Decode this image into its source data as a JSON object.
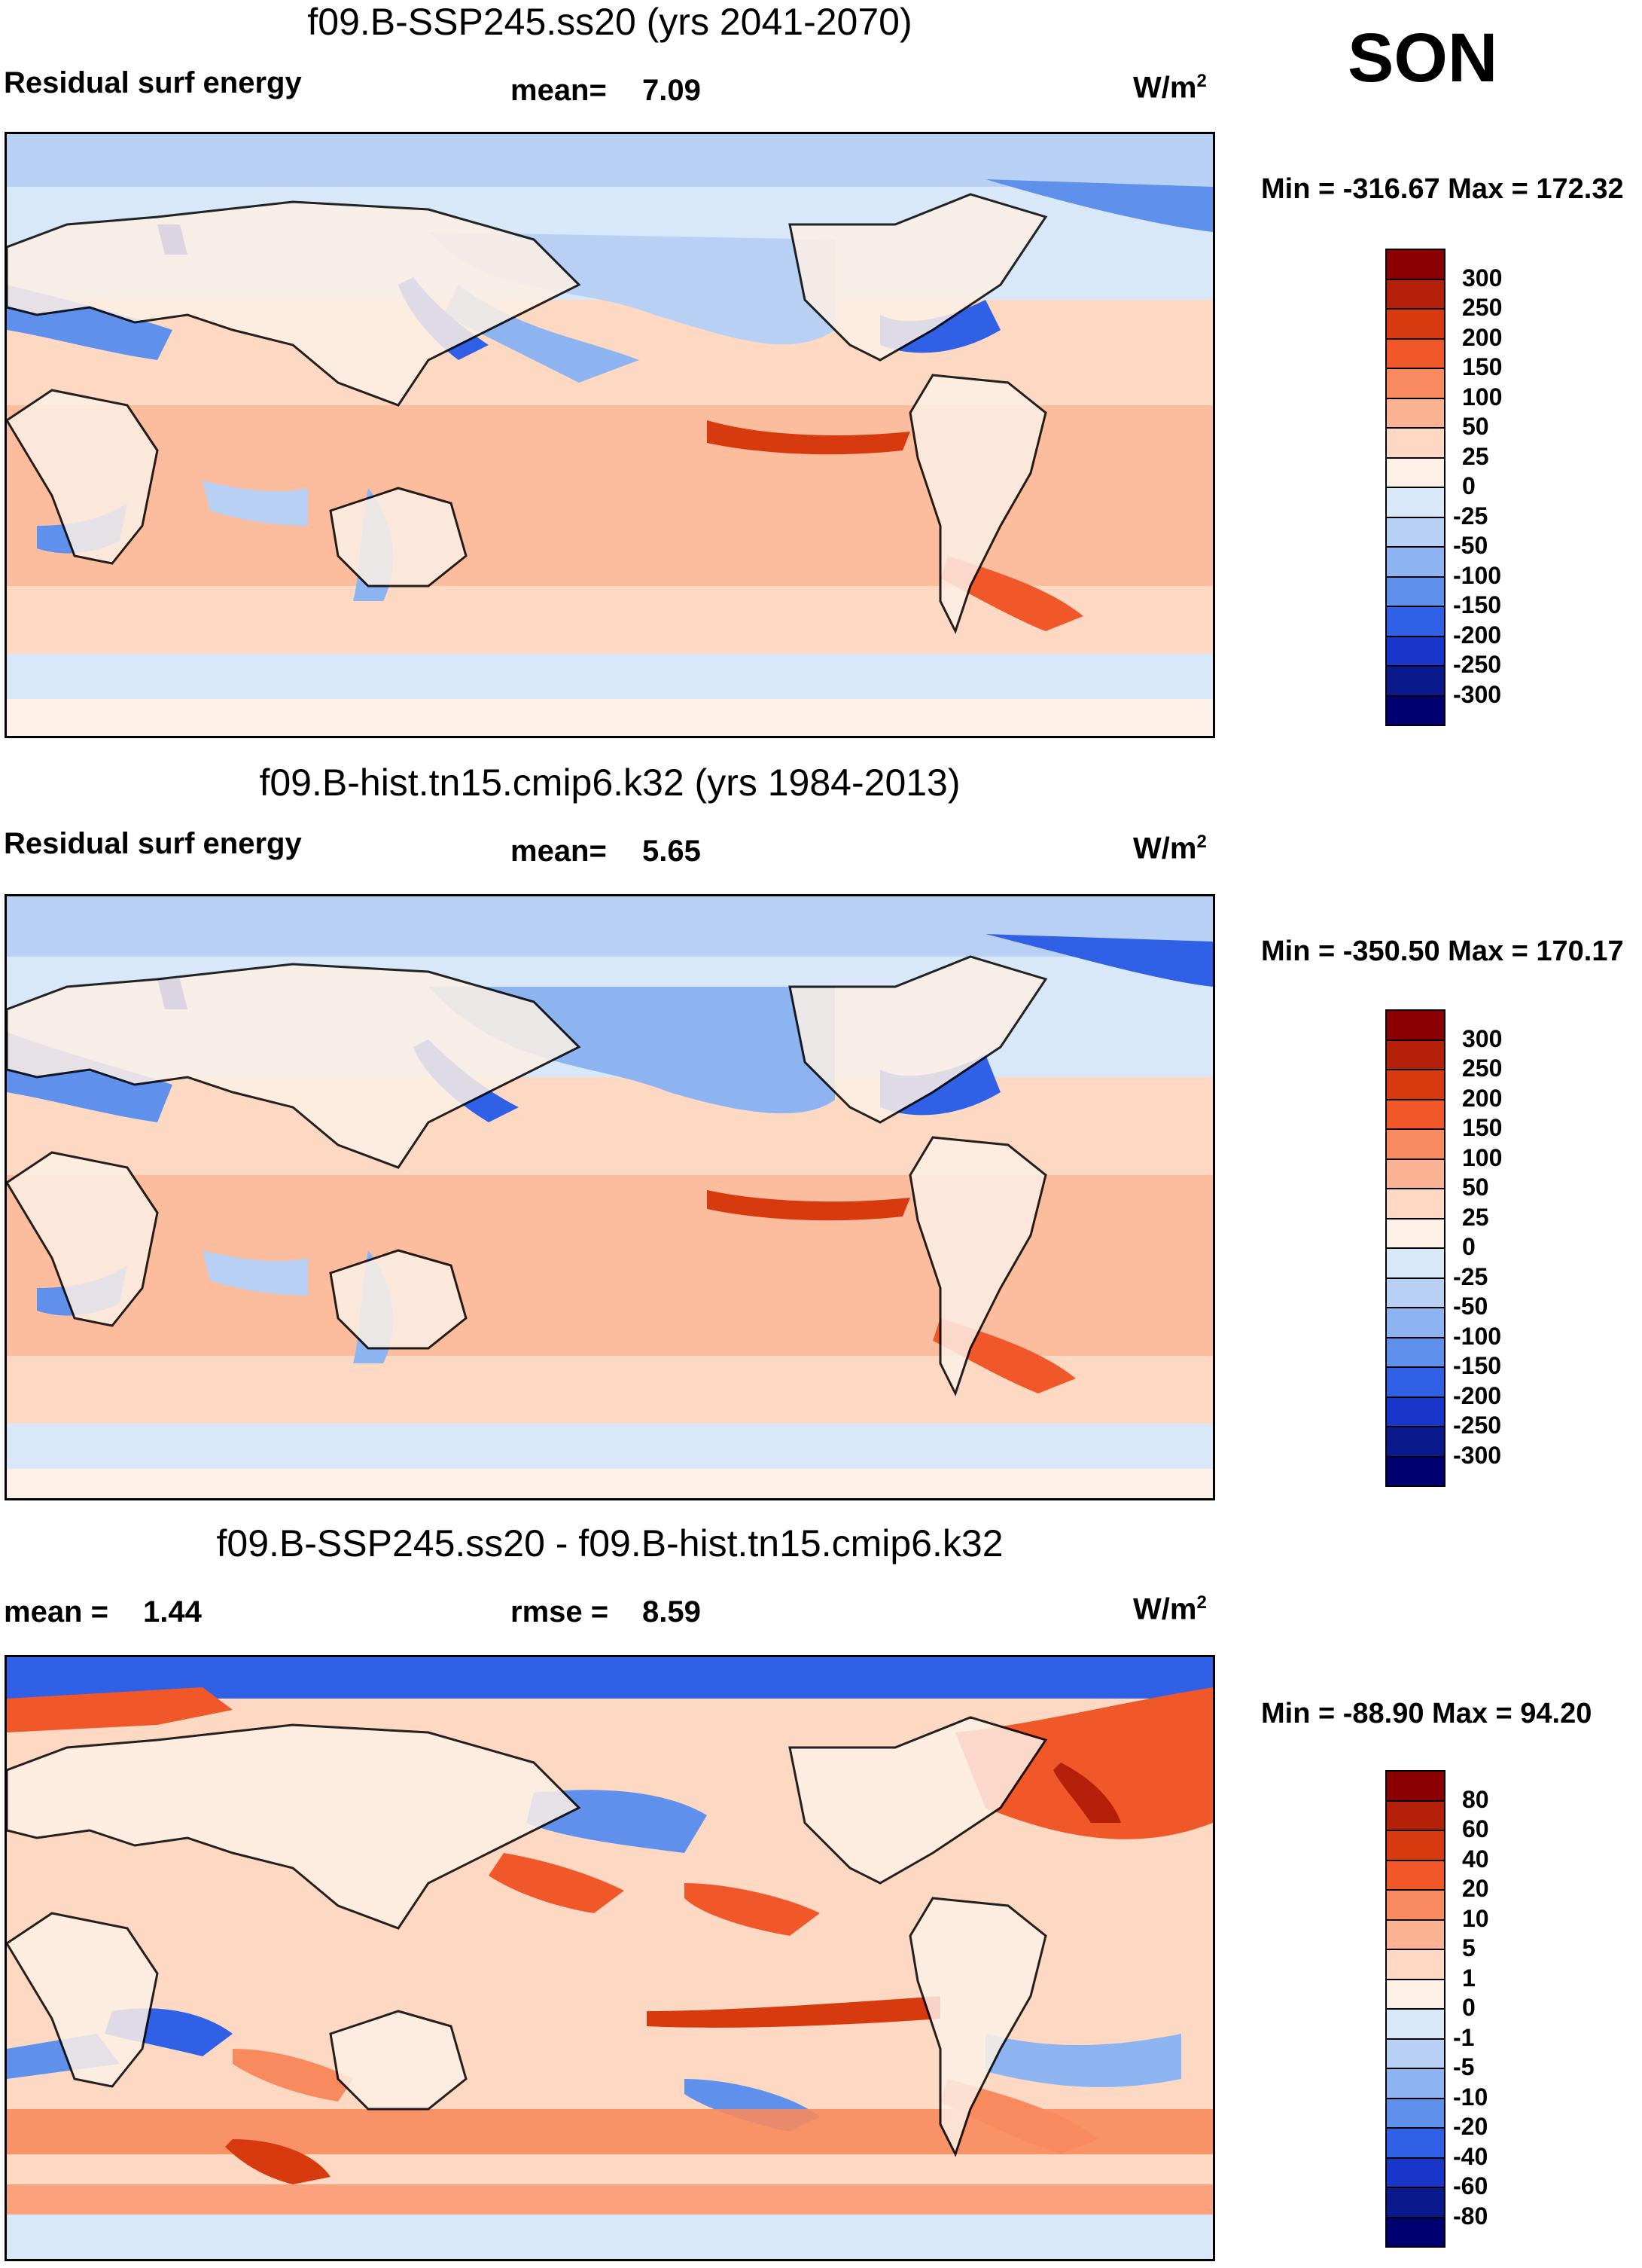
{
  "season": "SON",
  "panels": [
    {
      "title": "f09.B-SSP245.ss20 (yrs 2041-2070)",
      "left_label": "Residual surf energy",
      "stat1_label": "mean=",
      "stat1_value": "7.09",
      "stat2_label": "",
      "stat2_value": "",
      "units": "W/m",
      "units_sup": "2",
      "minmax": "Min = -316.67 Max = 172.32",
      "colorbar": {
        "ticks": [
          "300",
          "250",
          "200",
          "150",
          "100",
          "50",
          "25",
          "0",
          "-25",
          "-50",
          "-100",
          "-150",
          "-200",
          "-250",
          "-300"
        ],
        "colors": [
          "#8b0000",
          "#b5200a",
          "#d83a0f",
          "#f0582a",
          "#f98a5e",
          "#fbb393",
          "#fdd9c4",
          "#fdf0e6",
          "#d8e8f8",
          "#b7d0f4",
          "#8db4f0",
          "#5f90ec",
          "#3060e6",
          "#1836c8",
          "#0a1a8c",
          "#000070"
        ]
      }
    },
    {
      "title": "f09.B-hist.tn15.cmip6.k32 (yrs 1984-2013)",
      "left_label": "Residual surf energy",
      "stat1_label": "mean=",
      "stat1_value": "5.65",
      "stat2_label": "",
      "stat2_value": "",
      "units": "W/m",
      "units_sup": "2",
      "minmax": "Min = -350.50 Max = 170.17",
      "colorbar": {
        "ticks": [
          "300",
          "250",
          "200",
          "150",
          "100",
          "50",
          "25",
          "0",
          "-25",
          "-50",
          "-100",
          "-150",
          "-200",
          "-250",
          "-300"
        ],
        "colors": [
          "#8b0000",
          "#b5200a",
          "#d83a0f",
          "#f0582a",
          "#f98a5e",
          "#fbb393",
          "#fdd9c4",
          "#fdf0e6",
          "#d8e8f8",
          "#b7d0f4",
          "#8db4f0",
          "#5f90ec",
          "#3060e6",
          "#1836c8",
          "#0a1a8c",
          "#000070"
        ]
      }
    },
    {
      "title": "f09.B-SSP245.ss20 - f09.B-hist.tn15.cmip6.k32",
      "left_label": "mean =",
      "stat1_label": "rmse =",
      "stat1_value": "8.59",
      "stat2_label": "1.44",
      "stat2_value": "",
      "units": "W/m",
      "units_sup": "2",
      "minmax": "Min = -88.90 Max =  94.20",
      "colorbar": {
        "ticks": [
          "80",
          "60",
          "40",
          "20",
          "10",
          "5",
          "1",
          "0",
          "-1",
          "-5",
          "-10",
          "-20",
          "-40",
          "-60",
          "-80"
        ],
        "colors": [
          "#8b0000",
          "#b5200a",
          "#d83a0f",
          "#f0582a",
          "#f98a5e",
          "#fbb393",
          "#fdd9c4",
          "#fdf0e6",
          "#d8e8f8",
          "#b7d0f4",
          "#8db4f0",
          "#5f90ec",
          "#3060e6",
          "#1836c8",
          "#0a1a8c",
          "#000070"
        ]
      }
    }
  ]
}
